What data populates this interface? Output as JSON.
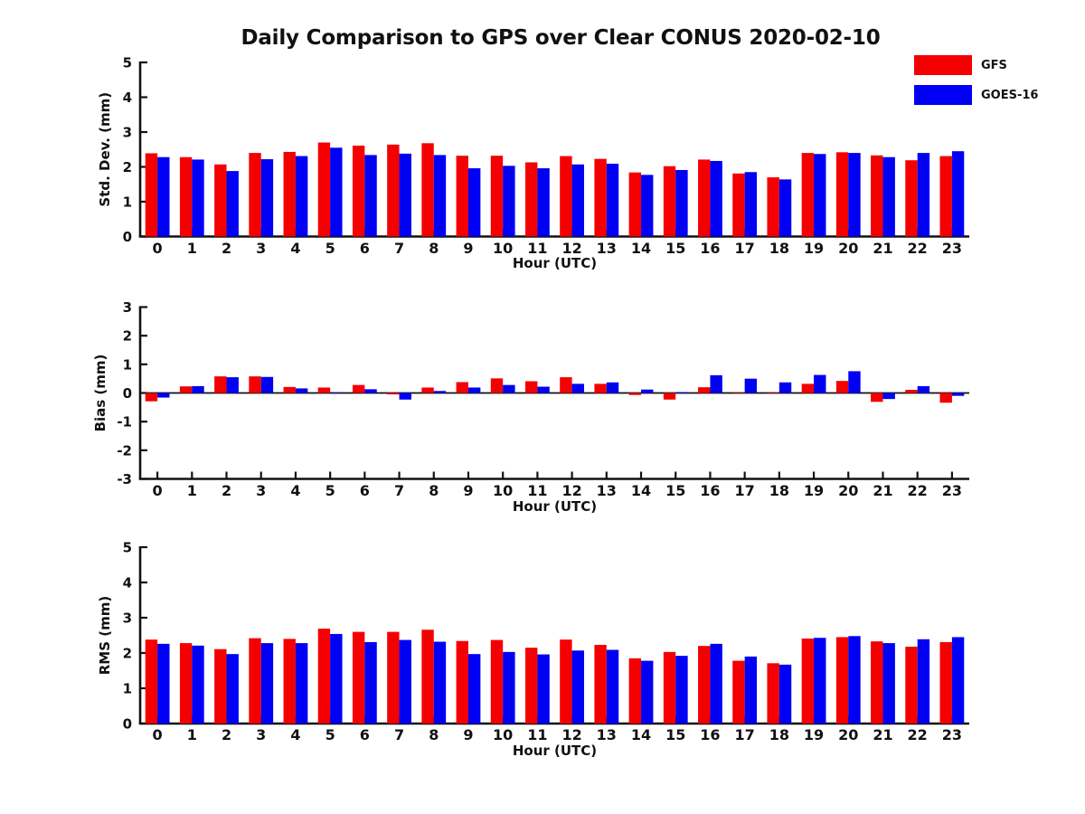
{
  "title": "Daily Comparison to GPS over Clear CONUS 2020-02-10",
  "legend": {
    "position": "top-right",
    "entries": [
      {
        "label": "GFS",
        "color": "#f50000"
      },
      {
        "label": "GOES-16",
        "color": "#0000f5"
      }
    ]
  },
  "colors": {
    "text": "#111111",
    "axis": "#111111",
    "background": "#ffffff"
  },
  "chart_data": [
    {
      "type": "bar",
      "name": "std-dev",
      "ylabel": "Std. Dev. (mm)",
      "xlabel": "Hour (UTC)",
      "ylim": [
        0,
        5
      ],
      "yticks": [
        0,
        1,
        2,
        3,
        4,
        5
      ],
      "grid": false,
      "categories": [
        "0",
        "1",
        "2",
        "3",
        "4",
        "5",
        "6",
        "7",
        "8",
        "9",
        "10",
        "11",
        "12",
        "13",
        "14",
        "15",
        "16",
        "17",
        "18",
        "19",
        "20",
        "21",
        "22",
        "23"
      ],
      "series": [
        {
          "name": "GFS",
          "color": "#f50000",
          "values": [
            2.39,
            2.28,
            2.07,
            2.4,
            2.43,
            2.7,
            2.61,
            2.64,
            2.68,
            2.32,
            2.32,
            2.13,
            2.31,
            2.23,
            1.84,
            2.02,
            2.21,
            1.81,
            1.7,
            2.4,
            2.42,
            2.33,
            2.19,
            2.31
          ]
        },
        {
          "name": "GOES-16",
          "color": "#0000f5",
          "values": [
            2.28,
            2.21,
            1.88,
            2.22,
            2.31,
            2.55,
            2.34,
            2.38,
            2.34,
            1.96,
            2.03,
            1.96,
            2.07,
            2.09,
            1.77,
            1.91,
            2.17,
            1.85,
            1.64,
            2.37,
            2.4,
            2.28,
            2.4,
            2.45
          ]
        }
      ]
    },
    {
      "type": "bar",
      "name": "bias",
      "ylabel": "Bias (mm)",
      "xlabel": "Hour (UTC)",
      "ylim": [
        -3,
        3
      ],
      "yticks": [
        3,
        2,
        1,
        0,
        -1,
        -2,
        -3
      ],
      "zero_line": true,
      "grid": false,
      "categories": [
        "0",
        "1",
        "2",
        "3",
        "4",
        "5",
        "6",
        "7",
        "8",
        "9",
        "10",
        "11",
        "12",
        "13",
        "14",
        "15",
        "16",
        "17",
        "18",
        "19",
        "20",
        "21",
        "22",
        "23"
      ],
      "series": [
        {
          "name": "GFS",
          "color": "#f50000",
          "values": [
            -0.29,
            0.23,
            0.58,
            0.58,
            0.21,
            0.19,
            0.28,
            -0.05,
            0.19,
            0.38,
            0.51,
            0.41,
            0.55,
            0.32,
            -0.07,
            -0.23,
            0.2,
            0.02,
            0.02,
            0.32,
            0.42,
            -0.31,
            0.11,
            -0.34
          ]
        },
        {
          "name": "GOES-16",
          "color": "#0000f5",
          "values": [
            -0.16,
            0.24,
            0.55,
            0.56,
            0.16,
            0.02,
            0.13,
            -0.23,
            0.07,
            0.19,
            0.28,
            0.22,
            0.32,
            0.37,
            0.12,
            0.03,
            0.62,
            0.5,
            0.37,
            0.63,
            0.76,
            -0.21,
            0.24,
            -0.1
          ]
        }
      ]
    },
    {
      "type": "bar",
      "name": "rms",
      "ylabel": "RMS (mm)",
      "xlabel": "Hour (UTC)",
      "ylim": [
        0,
        5
      ],
      "yticks": [
        0,
        1,
        2,
        3,
        4,
        5
      ],
      "grid": false,
      "categories": [
        "0",
        "1",
        "2",
        "3",
        "4",
        "5",
        "6",
        "7",
        "8",
        "9",
        "10",
        "11",
        "12",
        "13",
        "14",
        "15",
        "16",
        "17",
        "18",
        "19",
        "20",
        "21",
        "22",
        "23"
      ],
      "series": [
        {
          "name": "GFS",
          "color": "#f50000",
          "values": [
            2.38,
            2.28,
            2.11,
            2.42,
            2.4,
            2.69,
            2.6,
            2.6,
            2.66,
            2.34,
            2.37,
            2.15,
            2.38,
            2.23,
            1.85,
            2.03,
            2.2,
            1.78,
            1.71,
            2.41,
            2.45,
            2.33,
            2.18,
            2.31
          ]
        },
        {
          "name": "GOES-16",
          "color": "#0000f5",
          "values": [
            2.26,
            2.21,
            1.97,
            2.28,
            2.28,
            2.54,
            2.31,
            2.37,
            2.32,
            1.97,
            2.03,
            1.96,
            2.07,
            2.09,
            1.78,
            1.92,
            2.26,
            1.9,
            1.67,
            2.43,
            2.48,
            2.28,
            2.39,
            2.45
          ]
        }
      ]
    }
  ]
}
